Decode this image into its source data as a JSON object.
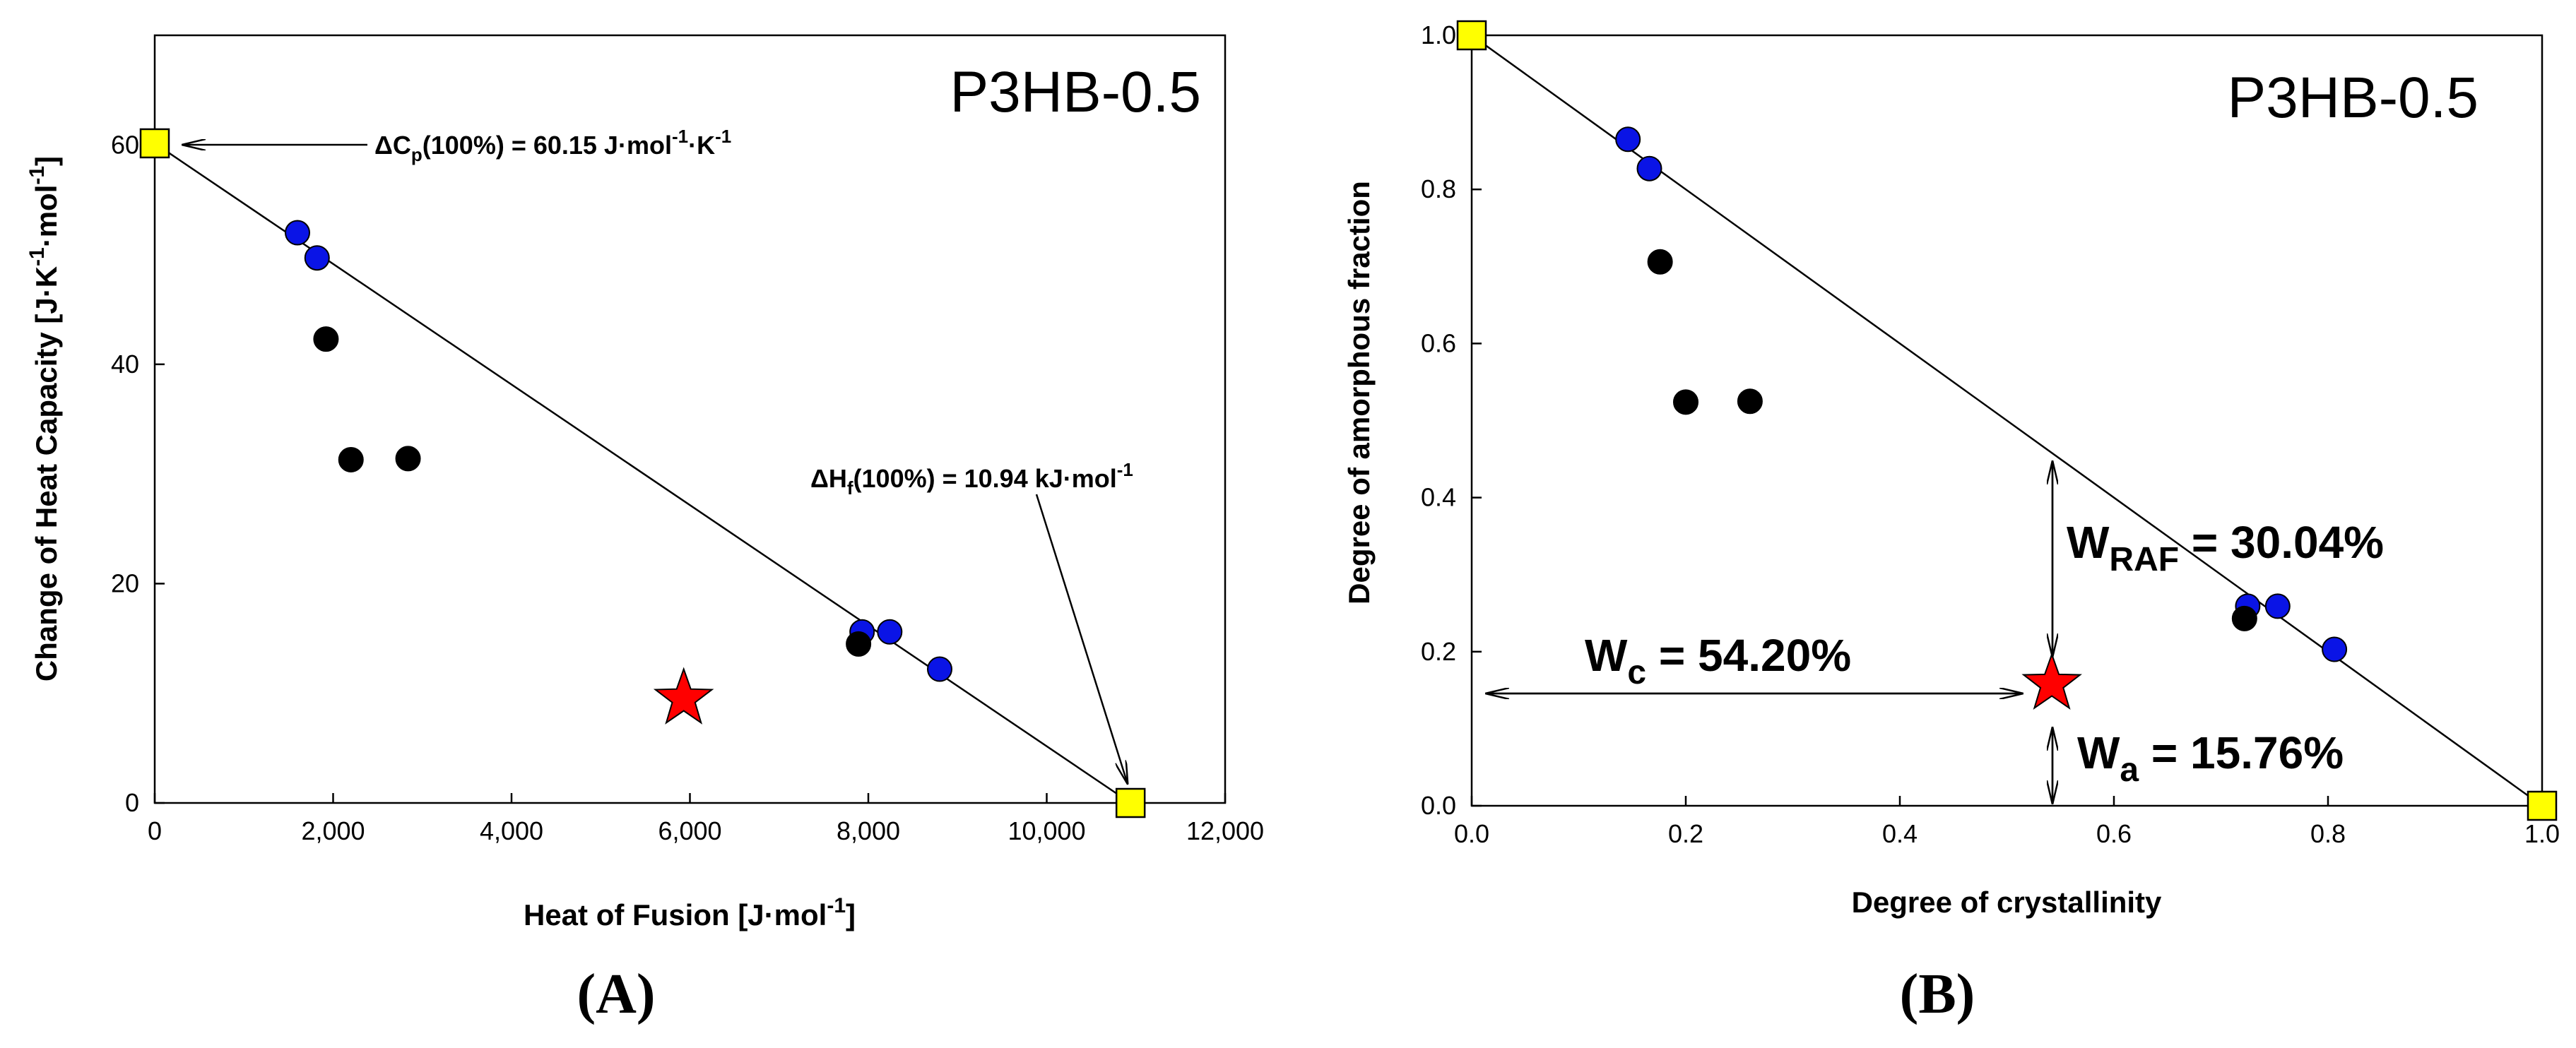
{
  "colors": {
    "blue": "#0a14e6",
    "black": "#000000",
    "yellow": "#ffff00",
    "red": "#ff0000",
    "line": "#000000"
  },
  "chart_data": [
    {
      "type": "scatter",
      "panel": "A",
      "caption": "(A)",
      "title": "P3HB-0.5",
      "xlabel": "Heat of Fusion [J·mol",
      "xlabel_sup": "-1",
      "xlabel_end": "]",
      "ylabel": "Change of Heat Capacity [J·K",
      "ylabel_sup1": "-1",
      "ylabel_mid": "·mol",
      "ylabel_sup2": "-1",
      "ylabel_end": "]",
      "xlim": [
        0,
        12000
      ],
      "ylim": [
        0,
        70
      ],
      "x_ticks": [
        0,
        2000,
        4000,
        6000,
        8000,
        10000,
        12000
      ],
      "x_tick_labels": [
        "0",
        "2,000",
        "4,000",
        "6,000",
        "8,000",
        "10,000",
        "12,000"
      ],
      "y_ticks": [
        0,
        20,
        40,
        60
      ],
      "y_tick_labels": [
        "0",
        "20",
        "40",
        "60"
      ],
      "line": {
        "x": [
          0,
          10940
        ],
        "y": [
          60.15,
          0
        ]
      },
      "series": [
        {
          "name": "blue",
          "marker": "circle",
          "x": [
            1600,
            1820,
            7930,
            8240,
            8800
          ],
          "y": [
            52,
            49.7,
            15.6,
            15.6,
            12.2
          ]
        },
        {
          "name": "black",
          "marker": "circle",
          "x": [
            1920,
            2200,
            2840,
            7890
          ],
          "y": [
            42.3,
            31.3,
            31.4,
            14.5
          ]
        },
        {
          "name": "reference",
          "marker": "square",
          "x": [
            0,
            10940
          ],
          "y": [
            60.15,
            0
          ]
        },
        {
          "name": "sample",
          "marker": "star",
          "x": [
            5930
          ],
          "y": [
            9.5
          ]
        }
      ],
      "annotations": [
        {
          "id": "dcp",
          "prefix": "ΔC",
          "sub": "p",
          "main": "(100%) =  60.15 J·mol",
          "sup1": "-1",
          "mid": "·K",
          "sup2": "-1"
        },
        {
          "id": "dhf",
          "prefix": "ΔH",
          "sub": "f",
          "main": "(100%) =  10.94 kJ·mol",
          "sup1": "-1"
        }
      ]
    },
    {
      "type": "scatter",
      "panel": "B",
      "caption": "(B)",
      "title": "P3HB-0.5",
      "xlabel": "Degree of crystallinity",
      "ylabel": "Degree of amorphous fraction",
      "xlim": [
        0,
        1
      ],
      "ylim": [
        0,
        1
      ],
      "x_ticks": [
        0,
        0.2,
        0.4,
        0.6,
        0.8,
        1.0
      ],
      "x_tick_labels": [
        "0.0",
        "0.2",
        "0.4",
        "0.6",
        "0.8",
        "1.0"
      ],
      "y_ticks": [
        0,
        0.2,
        0.4,
        0.6,
        0.8,
        1.0
      ],
      "y_tick_labels": [
        "0.0",
        "0.2",
        "0.4",
        "0.6",
        "0.8",
        "1.0"
      ],
      "line": {
        "x": [
          0,
          1
        ],
        "y": [
          1,
          0
        ]
      },
      "series": [
        {
          "name": "blue",
          "marker": "circle",
          "x": [
            0.146,
            0.166,
            0.725,
            0.753,
            0.806
          ],
          "y": [
            0.865,
            0.827,
            0.259,
            0.259,
            0.203
          ]
        },
        {
          "name": "black",
          "marker": "circle",
          "x": [
            0.176,
            0.2,
            0.26,
            0.722
          ],
          "y": [
            0.706,
            0.524,
            0.525,
            0.243
          ]
        },
        {
          "name": "reference",
          "marker": "square",
          "x": [
            0,
            1
          ],
          "y": [
            1,
            0
          ]
        },
        {
          "name": "sample",
          "marker": "star",
          "x": [
            0.542
          ],
          "y": [
            0.158
          ]
        }
      ],
      "annotations": [
        {
          "id": "wc",
          "prefix": "W",
          "sub": "c",
          "main": " = 54.20%"
        },
        {
          "id": "wraf",
          "prefix": "W",
          "sub": "RAF",
          "main": " = 30.04%"
        },
        {
          "id": "wa",
          "prefix": "W",
          "sub": "a",
          "main": " = 15.76%"
        }
      ]
    }
  ]
}
